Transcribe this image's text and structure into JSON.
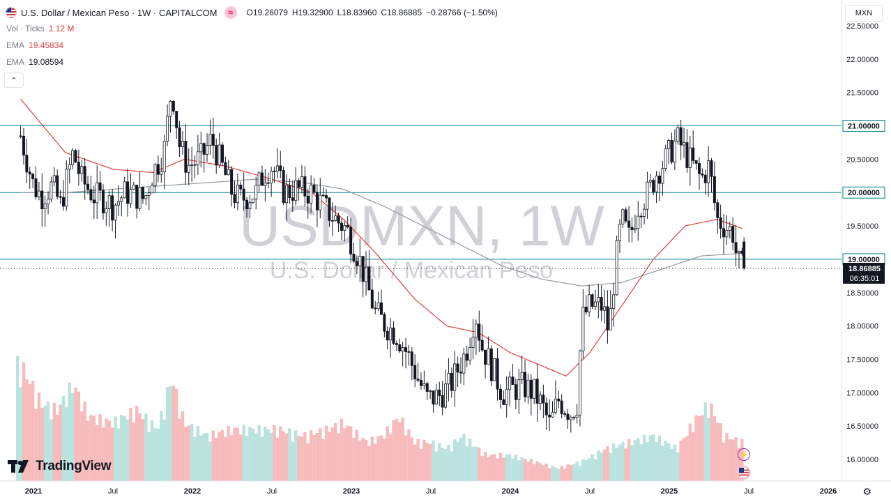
{
  "header": {
    "title": "U.S. Dollar / Mexican Peso · 1W · CAPITALCOM",
    "open_label": "O",
    "open": "19.26079",
    "high_label": "H",
    "high": "19.32900",
    "low_label": "L",
    "low": "18.83960",
    "close_label": "C",
    "close": "18.86885",
    "change": "−0.28766 (−1.50%)"
  },
  "legend": {
    "vol_label": "Vol · Ticks",
    "vol_value": "1.12 M",
    "ema1_label": "EMA",
    "ema1_value": "19.45834",
    "ema2_label": "EMA",
    "ema2_value": "19.08594"
  },
  "currency_button": "MXN",
  "watermark": {
    "symbol": "USDMXN, 1W",
    "name": "U.S. Dollar / Mexican Peso"
  },
  "price_label": {
    "price": "18.86885",
    "countdown": "06:35:01"
  },
  "brand": "TradingView",
  "icons": {
    "flag": "us-flag-icon",
    "compare": "wave-icon",
    "collapse": "chevron-up-icon",
    "settings": "gear-icon",
    "lightning": "lightning-icon"
  },
  "colors": {
    "up": "#131722",
    "down": "#131722",
    "ema50": "#e03e3e",
    "ema200": "#9598a1",
    "hline": "#00838f",
    "vol_up": "#b2dfdb",
    "vol_down": "#f6b4b4",
    "label_bg": "#131722"
  },
  "chart_data": {
    "type": "candlestick",
    "symbol": "USDMXN",
    "timeframe": "1W",
    "ylim": [
      15.8,
      22.6
    ],
    "y_ticks": [
      "22.50000",
      "22.00000",
      "21.50000",
      "21.00000",
      "20.50000",
      "20.00000",
      "19.50000",
      "19.00000",
      "18.50000",
      "18.00000",
      "17.50000",
      "17.00000",
      "16.50000",
      "16.00000"
    ],
    "x_ticks": [
      "2021",
      "Jul",
      "2022",
      "Jul",
      "2023",
      "Jul",
      "2024",
      "Jul",
      "2025",
      "Jul",
      "2026"
    ],
    "horizontal_levels": [
      "21.00000",
      "20.00000",
      "19.00000"
    ],
    "current_price": 18.86885,
    "ema_values": [
      19.45834,
      19.08594
    ],
    "close_path": [
      [
        2020.92,
        20.85
      ],
      [
        2021.0,
        20.1
      ],
      [
        2021.05,
        19.95
      ],
      [
        2021.12,
        20.1
      ],
      [
        2021.17,
        19.8
      ],
      [
        2021.25,
        20.6
      ],
      [
        2021.3,
        20.2
      ],
      [
        2021.38,
        19.95
      ],
      [
        2021.45,
        19.9
      ],
      [
        2021.5,
        19.8
      ],
      [
        2021.58,
        20.0
      ],
      [
        2021.65,
        19.95
      ],
      [
        2021.7,
        19.9
      ],
      [
        2021.75,
        20.3
      ],
      [
        2021.82,
        20.6
      ],
      [
        2021.87,
        21.6
      ],
      [
        2021.92,
        20.7
      ],
      [
        2021.97,
        20.4
      ],
      [
        2022.05,
        20.5
      ],
      [
        2022.12,
        20.8
      ],
      [
        2022.2,
        20.3
      ],
      [
        2022.25,
        20.0
      ],
      [
        2022.3,
        19.9
      ],
      [
        2022.4,
        20.0
      ],
      [
        2022.45,
        20.3
      ],
      [
        2022.5,
        20.4
      ],
      [
        2022.58,
        20.0
      ],
      [
        2022.65,
        20.05
      ],
      [
        2022.75,
        20.0
      ],
      [
        2022.82,
        19.8
      ],
      [
        2022.9,
        19.6
      ],
      [
        2022.97,
        19.45
      ],
      [
        2023.05,
        19.0
      ],
      [
        2023.1,
        18.6
      ],
      [
        2023.15,
        18.2
      ],
      [
        2023.22,
        18.0
      ],
      [
        2023.28,
        17.9
      ],
      [
        2023.35,
        17.6
      ],
      [
        2023.42,
        17.2
      ],
      [
        2023.48,
        16.9
      ],
      [
        2023.55,
        16.95
      ],
      [
        2023.62,
        17.1
      ],
      [
        2023.68,
        17.4
      ],
      [
        2023.72,
        17.6
      ],
      [
        2023.78,
        18.2
      ],
      [
        2023.82,
        17.7
      ],
      [
        2023.88,
        17.4
      ],
      [
        2023.95,
        17.0
      ],
      [
        2024.02,
        17.05
      ],
      [
        2024.08,
        17.1
      ],
      [
        2024.15,
        17.0
      ],
      [
        2024.2,
        16.8
      ],
      [
        2024.25,
        16.5
      ],
      [
        2024.3,
        16.9
      ],
      [
        2024.38,
        16.7
      ],
      [
        2024.42,
        16.85
      ],
      [
        2024.45,
        18.1
      ],
      [
        2024.5,
        18.3
      ],
      [
        2024.58,
        18.3
      ],
      [
        2024.62,
        17.9
      ],
      [
        2024.66,
        18.9
      ],
      [
        2024.7,
        19.6
      ],
      [
        2024.75,
        19.3
      ],
      [
        2024.8,
        19.8
      ],
      [
        2024.87,
        20.0
      ],
      [
        2024.92,
        20.3
      ],
      [
        2024.98,
        20.5
      ],
      [
        2025.05,
        20.8
      ],
      [
        2025.1,
        20.6
      ],
      [
        2025.15,
        20.4
      ],
      [
        2025.2,
        20.2
      ],
      [
        2025.25,
        20.4
      ],
      [
        2025.3,
        19.6
      ],
      [
        2025.35,
        19.5
      ],
      [
        2025.4,
        19.4
      ],
      [
        2025.43,
        18.95
      ],
      [
        2025.46,
        18.87
      ]
    ],
    "ema50_path": [
      [
        2020.92,
        21.4
      ],
      [
        2021.2,
        20.6
      ],
      [
        2021.5,
        20.35
      ],
      [
        2021.75,
        20.3
      ],
      [
        2021.95,
        20.5
      ],
      [
        2022.2,
        20.4
      ],
      [
        2022.5,
        20.2
      ],
      [
        2022.75,
        20.0
      ],
      [
        2022.95,
        19.6
      ],
      [
        2023.15,
        19.1
      ],
      [
        2023.4,
        18.4
      ],
      [
        2023.6,
        18.0
      ],
      [
        2023.8,
        17.9
      ],
      [
        2024.0,
        17.6
      ],
      [
        2024.2,
        17.4
      ],
      [
        2024.35,
        17.25
      ],
      [
        2024.5,
        17.6
      ],
      [
        2024.7,
        18.3
      ],
      [
        2024.9,
        19.0
      ],
      [
        2025.1,
        19.5
      ],
      [
        2025.3,
        19.6
      ],
      [
        2025.46,
        19.46
      ]
    ],
    "ema200_path": [
      [
        2020.92,
        20.0
      ],
      [
        2021.2,
        20.0
      ],
      [
        2021.5,
        20.05
      ],
      [
        2021.8,
        20.1
      ],
      [
        2022.1,
        20.15
      ],
      [
        2022.4,
        20.2
      ],
      [
        2022.7,
        20.15
      ],
      [
        2022.95,
        20.05
      ],
      [
        2023.2,
        19.8
      ],
      [
        2023.45,
        19.5
      ],
      [
        2023.7,
        19.2
      ],
      [
        2023.95,
        18.9
      ],
      [
        2024.2,
        18.7
      ],
      [
        2024.45,
        18.6
      ],
      [
        2024.7,
        18.65
      ],
      [
        2024.95,
        18.85
      ],
      [
        2025.2,
        19.05
      ],
      [
        2025.46,
        19.09
      ]
    ],
    "volume_profile": [
      [
        2020.92,
        0.9
      ],
      [
        2021.05,
        0.6
      ],
      [
        2021.15,
        0.55
      ],
      [
        2021.25,
        0.75
      ],
      [
        2021.35,
        0.5
      ],
      [
        2021.5,
        0.45
      ],
      [
        2021.65,
        0.55
      ],
      [
        2021.78,
        0.4
      ],
      [
        2021.87,
        0.8
      ],
      [
        2021.95,
        0.45
      ],
      [
        2022.1,
        0.35
      ],
      [
        2022.25,
        0.4
      ],
      [
        2022.4,
        0.4
      ],
      [
        2022.55,
        0.4
      ],
      [
        2022.7,
        0.35
      ],
      [
        2022.85,
        0.4
      ],
      [
        2022.95,
        0.45
      ],
      [
        2023.1,
        0.3
      ],
      [
        2023.2,
        0.35
      ],
      [
        2023.3,
        0.5
      ],
      [
        2023.4,
        0.3
      ],
      [
        2023.5,
        0.3
      ],
      [
        2023.6,
        0.25
      ],
      [
        2023.7,
        0.35
      ],
      [
        2023.85,
        0.2
      ],
      [
        2024.0,
        0.2
      ],
      [
        2024.15,
        0.15
      ],
      [
        2024.3,
        0.1
      ],
      [
        2024.45,
        0.15
      ],
      [
        2024.6,
        0.25
      ],
      [
        2024.75,
        0.3
      ],
      [
        2024.9,
        0.35
      ],
      [
        2025.05,
        0.25
      ],
      [
        2025.15,
        0.45
      ],
      [
        2025.25,
        0.6
      ],
      [
        2025.35,
        0.35
      ],
      [
        2025.46,
        0.3
      ]
    ]
  }
}
